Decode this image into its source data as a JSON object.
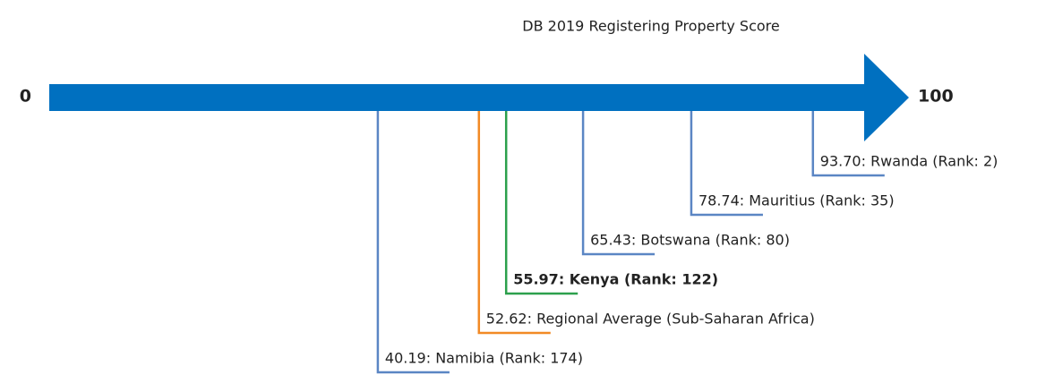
{
  "chart_data": {
    "type": "scale",
    "title": "DB 2019 Registering Property Score",
    "xlim": [
      0,
      100
    ],
    "xticks": [
      0,
      100
    ],
    "axis_color": "#0070c0",
    "points": [
      {
        "value": 93.7,
        "label": "93.70: Rwanda (Rank: 2)",
        "color": "#5b86c4",
        "bold": false
      },
      {
        "value": 78.74,
        "label": "78.74: Mauritius (Rank: 35)",
        "color": "#5b86c4",
        "bold": false
      },
      {
        "value": 65.43,
        "label": "65.43: Botswana (Rank: 80)",
        "color": "#5b86c4",
        "bold": false
      },
      {
        "value": 55.97,
        "label": "55.97: Kenya (Rank: 122)",
        "color": "#2ca04c",
        "bold": true
      },
      {
        "value": 52.62,
        "label": "52.62: Regional Average (Sub-Saharan Africa)",
        "color": "#f28a25",
        "bold": false
      },
      {
        "value": 40.19,
        "label": "40.19: Namibia (Rank: 174)",
        "color": "#5b86c4",
        "bold": false
      }
    ]
  }
}
